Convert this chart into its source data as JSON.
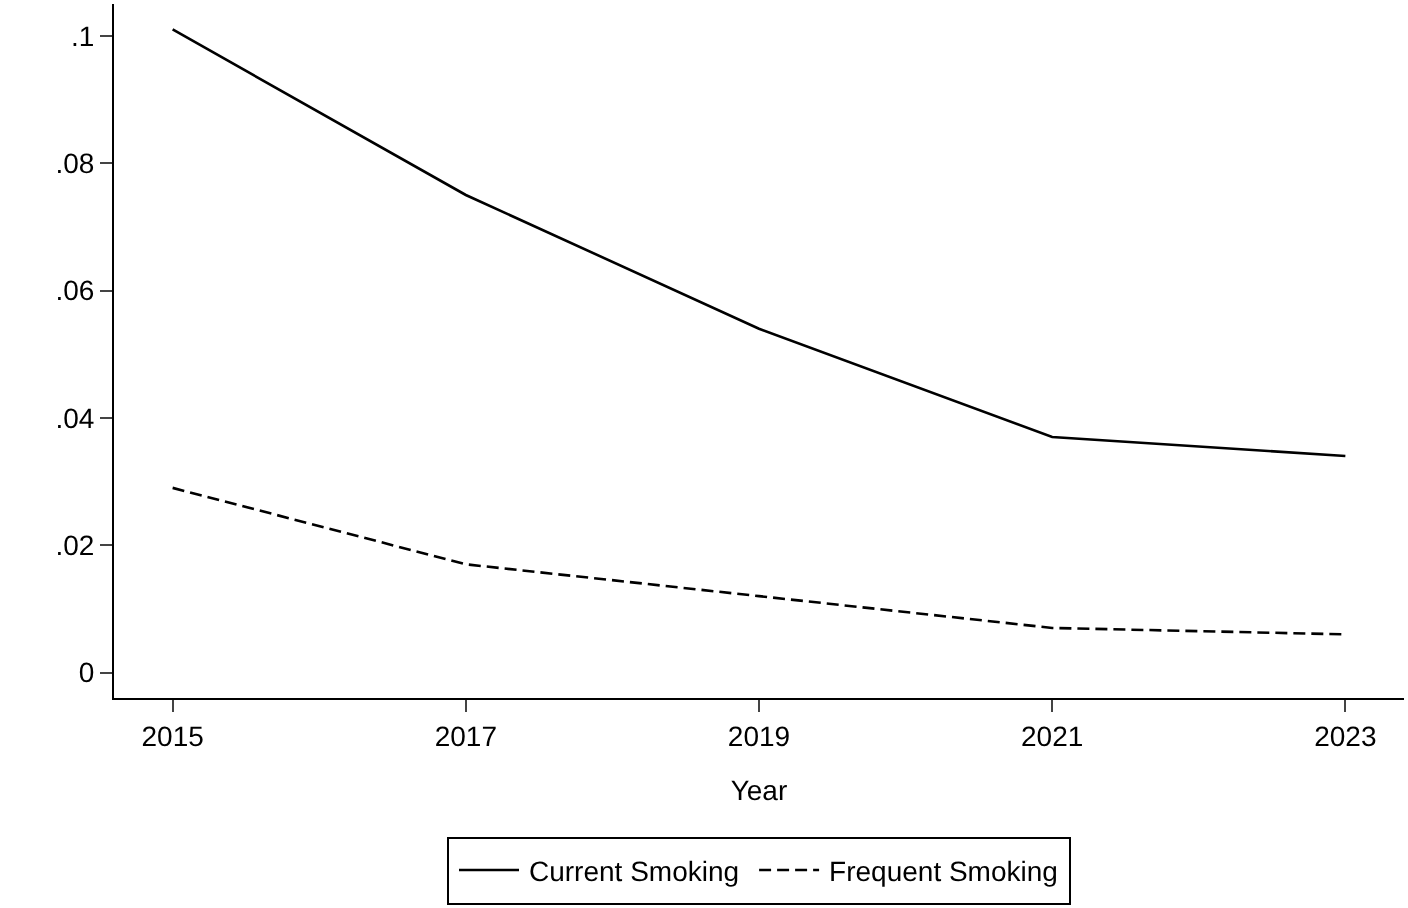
{
  "chart_data": {
    "type": "line",
    "xlabel": "Year",
    "x": [
      2015,
      2017,
      2019,
      2021,
      2023
    ],
    "series": [
      {
        "name": "Current Smoking",
        "color": "#000000",
        "line_style": "solid",
        "values": [
          0.101,
          0.075,
          0.054,
          0.037,
          0.034
        ]
      },
      {
        "name": "Frequent Smoking",
        "color": "#000000",
        "line_style": "dashed",
        "values": [
          0.029,
          0.017,
          0.012,
          0.007,
          0.006
        ]
      }
    ],
    "xlim": [
      2014.6,
      2023.4
    ],
    "xticks": [
      2015,
      2017,
      2019,
      2021,
      2023
    ],
    "ylim": [
      -0.004,
      0.105
    ],
    "yticks": [
      0,
      {
        "value": 0.02,
        "label": ".02"
      },
      {
        "value": 0.04,
        "label": ".04"
      },
      {
        "value": 0.06,
        "label": ".06"
      },
      {
        "value": 0.08,
        "label": ".08"
      },
      {
        "value": 0.1,
        "label": ".1"
      }
    ],
    "legend": "bottom",
    "marker": "none"
  }
}
